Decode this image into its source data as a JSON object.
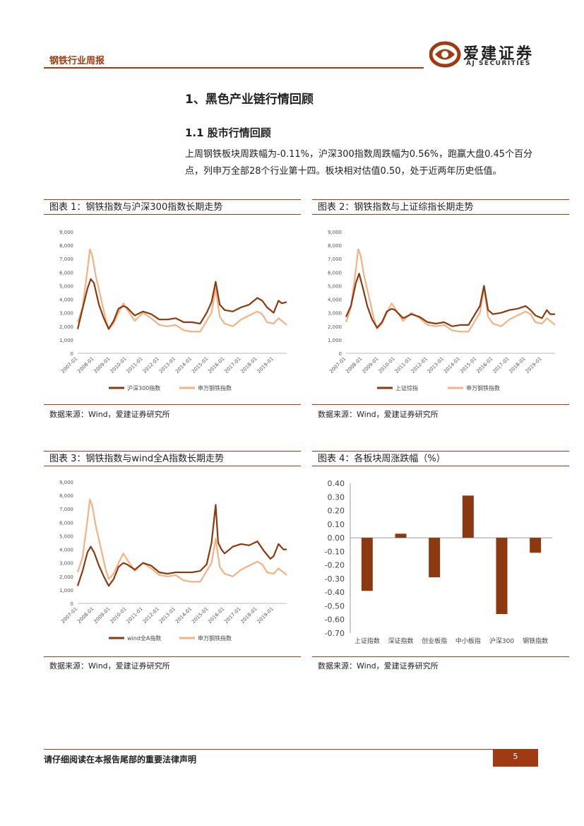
{
  "header": {
    "title": "钢铁行业周报",
    "logo_cn": "爱建证券",
    "logo_en": "AJ SECURITIES",
    "brand_color": "#a03a12"
  },
  "section_title": "1、黑色产业链行情回顾",
  "subsection_title": "1.1 股市行情回顾",
  "paragraph": "上周钢铁板块周跌幅为-0.11%，沪深300指数周跌幅为0.56%，跑赢大盘0.45个百分点，列申万全部28个行业第十四。板块相对估值0.50，处于近两年历史低值。",
  "figures": [
    {
      "title": "图表 1：钢铁指数与沪深300指数长期走势",
      "source": "数据来源：Wind，爱建证券研究所"
    },
    {
      "title": "图表 2：钢铁指数与上证综指长期走势",
      "source": "数据来源：Wind，爱建证券研究所"
    },
    {
      "title": "图表 3：钢铁指数与wind全A指数长期走势",
      "source": "数据来源：Wind，爱建证券研究所"
    },
    {
      "title": "图表 4：各板块周涨跌幅（%）",
      "source": "数据来源：Wind，爱建证券研究所"
    }
  ],
  "chart_data": [
    {
      "type": "line",
      "ylim": [
        0,
        9000
      ],
      "yticks": [
        "9,000",
        "8,000",
        "7,000",
        "6,000",
        "5,000",
        "4,000",
        "3,000",
        "2,000",
        "1,000",
        "0"
      ],
      "xticks": [
        "2007-01",
        "2008-01",
        "2009-01",
        "2010-01",
        "2011-01",
        "2012-01",
        "2013-01",
        "2014-01",
        "2015-01",
        "2016-01",
        "2017-01",
        "2018-01",
        "2019-01"
      ],
      "x_range": [
        2007.0,
        2019.8
      ],
      "series": [
        {
          "name": "沪深300指数",
          "color": "#8b3a10",
          "x": [
            2007.0,
            2007.3,
            2007.6,
            2007.8,
            2008.0,
            2008.3,
            2008.6,
            2008.9,
            2009.2,
            2009.5,
            2009.8,
            2010.0,
            2010.5,
            2011.0,
            2011.5,
            2012.0,
            2012.5,
            2013.0,
            2013.5,
            2014.0,
            2014.5,
            2014.9,
            2015.2,
            2015.45,
            2015.7,
            2016.0,
            2016.5,
            2017.0,
            2017.5,
            2018.0,
            2018.3,
            2018.6,
            2019.0,
            2019.3,
            2019.5,
            2019.8
          ],
          "values": [
            1800,
            3300,
            4800,
            5500,
            5200,
            3600,
            2600,
            1800,
            2400,
            3300,
            3500,
            3400,
            2800,
            3100,
            2900,
            2500,
            2500,
            2600,
            2300,
            2300,
            2200,
            3000,
            3800,
            5300,
            3600,
            3200,
            3100,
            3400,
            3600,
            4100,
            3900,
            3400,
            3000,
            3900,
            3700,
            3800
          ]
        },
        {
          "name": "申万钢铁指数",
          "color": "#f4b183",
          "x": [
            2007.0,
            2007.3,
            2007.6,
            2007.75,
            2007.9,
            2008.1,
            2008.4,
            2008.7,
            2008.9,
            2009.2,
            2009.5,
            2009.8,
            2010.0,
            2010.5,
            2011.0,
            2011.5,
            2012.0,
            2012.5,
            2013.0,
            2013.5,
            2014.0,
            2014.5,
            2014.9,
            2015.2,
            2015.45,
            2015.7,
            2016.0,
            2016.5,
            2017.0,
            2017.5,
            2018.0,
            2018.3,
            2018.6,
            2019.0,
            2019.3,
            2019.6,
            2019.8
          ],
          "values": [
            2300,
            3400,
            6200,
            7700,
            7200,
            5800,
            4200,
            2600,
            1800,
            2200,
            3000,
            3700,
            3300,
            2400,
            3000,
            2600,
            2100,
            2000,
            2100,
            1700,
            1600,
            1600,
            2400,
            3000,
            4800,
            2700,
            2200,
            2000,
            2500,
            2800,
            3100,
            2900,
            2300,
            2200,
            2600,
            2300,
            2100
          ]
        }
      ]
    },
    {
      "type": "line",
      "ylim": [
        0,
        9000
      ],
      "yticks": [
        "9,000",
        "8,000",
        "7,000",
        "6,000",
        "5,000",
        "4,000",
        "3,000",
        "2,000",
        "1,000",
        "0"
      ],
      "xticks": [
        "2007-01",
        "2008-01",
        "2009-01",
        "2010-01",
        "2011-01",
        "2012-01",
        "2013-01",
        "2014-01",
        "2015-01",
        "2016-01",
        "2017-01",
        "2018-01",
        "2019-01"
      ],
      "x_range": [
        2007.0,
        2019.8
      ],
      "series": [
        {
          "name": "上证综指",
          "color": "#8b3a10",
          "x": [
            2007.0,
            2007.3,
            2007.6,
            2007.8,
            2008.0,
            2008.3,
            2008.6,
            2008.9,
            2009.2,
            2009.5,
            2009.8,
            2010.0,
            2010.5,
            2011.0,
            2011.5,
            2012.0,
            2012.5,
            2013.0,
            2013.5,
            2014.0,
            2014.5,
            2014.9,
            2015.2,
            2015.45,
            2015.7,
            2016.0,
            2016.5,
            2017.0,
            2017.5,
            2018.0,
            2018.3,
            2018.6,
            2019.0,
            2019.3,
            2019.5,
            2019.8
          ],
          "values": [
            2700,
            3500,
            5200,
            5900,
            5000,
            3500,
            2500,
            1900,
            2300,
            3100,
            3300,
            3200,
            2600,
            2900,
            2700,
            2300,
            2200,
            2300,
            2000,
            2100,
            2100,
            2900,
            3500,
            5000,
            3200,
            2900,
            3000,
            3200,
            3300,
            3500,
            3200,
            2800,
            2600,
            3200,
            2900,
            2900
          ]
        },
        {
          "name": "申万钢铁指数",
          "color": "#f4b183",
          "x": [
            2007.0,
            2007.3,
            2007.6,
            2007.75,
            2007.9,
            2008.1,
            2008.4,
            2008.7,
            2008.9,
            2009.2,
            2009.5,
            2009.8,
            2010.0,
            2010.5,
            2011.0,
            2011.5,
            2012.0,
            2012.5,
            2013.0,
            2013.5,
            2014.0,
            2014.5,
            2014.9,
            2015.2,
            2015.45,
            2015.7,
            2016.0,
            2016.5,
            2017.0,
            2017.5,
            2018.0,
            2018.3,
            2018.6,
            2019.0,
            2019.3,
            2019.6,
            2019.8
          ],
          "values": [
            2300,
            3400,
            6200,
            7700,
            7200,
            5800,
            4200,
            2600,
            1800,
            2200,
            3000,
            3700,
            3300,
            2400,
            3000,
            2600,
            2100,
            2000,
            2100,
            1700,
            1600,
            1600,
            2400,
            3000,
            4800,
            2700,
            2200,
            2000,
            2500,
            2800,
            3100,
            2900,
            2300,
            2200,
            2600,
            2300,
            2100
          ]
        }
      ]
    },
    {
      "type": "line",
      "ylim": [
        0,
        9000
      ],
      "yticks": [
        "9,000",
        "8,000",
        "7,000",
        "6,000",
        "5,000",
        "4,000",
        "3,000",
        "2,000",
        "1,000",
        "0"
      ],
      "xticks": [
        "2007-01",
        "2008-01",
        "2009-01",
        "2010-01",
        "2011-01",
        "2012-01",
        "2013-01",
        "2014-01",
        "2015-01",
        "2016-01",
        "2017-01",
        "2018-01",
        "2019-01"
      ],
      "x_range": [
        2007.0,
        2019.8
      ],
      "series": [
        {
          "name": "wind全A指数",
          "color": "#8b3a10",
          "x": [
            2007.0,
            2007.3,
            2007.6,
            2007.8,
            2008.0,
            2008.3,
            2008.6,
            2008.9,
            2009.2,
            2009.5,
            2009.8,
            2010.0,
            2010.5,
            2011.0,
            2011.5,
            2012.0,
            2012.5,
            2013.0,
            2013.5,
            2014.0,
            2014.5,
            2014.9,
            2015.2,
            2015.45,
            2015.6,
            2015.8,
            2016.0,
            2016.5,
            2017.0,
            2017.5,
            2018.0,
            2018.4,
            2018.8,
            2019.0,
            2019.3,
            2019.6,
            2019.8
          ],
          "values": [
            1300,
            2400,
            3800,
            4200,
            3800,
            2800,
            2000,
            1300,
            1800,
            2700,
            3000,
            2900,
            2500,
            3000,
            2800,
            2300,
            2200,
            2300,
            2300,
            2300,
            2400,
            2900,
            4500,
            7300,
            4500,
            4000,
            3700,
            4200,
            4400,
            4300,
            4600,
            3900,
            3300,
            3500,
            4400,
            4000,
            4000
          ]
        },
        {
          "name": "申万钢铁指数",
          "color": "#f4b183",
          "x": [
            2007.0,
            2007.3,
            2007.6,
            2007.75,
            2007.9,
            2008.1,
            2008.4,
            2008.7,
            2008.9,
            2009.2,
            2009.5,
            2009.8,
            2010.0,
            2010.5,
            2011.0,
            2011.5,
            2012.0,
            2012.5,
            2013.0,
            2013.5,
            2014.0,
            2014.5,
            2014.9,
            2015.2,
            2015.45,
            2015.7,
            2016.0,
            2016.5,
            2017.0,
            2017.5,
            2018.0,
            2018.3,
            2018.6,
            2019.0,
            2019.3,
            2019.6,
            2019.8
          ],
          "values": [
            2300,
            3400,
            6200,
            7700,
            7200,
            5800,
            4200,
            2600,
            1800,
            2200,
            3000,
            3700,
            3300,
            2400,
            3000,
            2600,
            2100,
            2000,
            2100,
            1700,
            1600,
            1600,
            2400,
            3000,
            4800,
            2700,
            2200,
            2000,
            2500,
            2800,
            3100,
            2900,
            2300,
            2200,
            2600,
            2300,
            2100
          ]
        }
      ]
    },
    {
      "type": "bar",
      "ylim": [
        -0.7,
        0.4
      ],
      "yticks": [
        "0.40",
        "0.30",
        "0.20",
        "0.10",
        "0.00",
        "-0.10",
        "-0.20",
        "-0.30",
        "-0.40",
        "-0.50",
        "-0.60",
        "-0.70"
      ],
      "categories": [
        "上证指数",
        "深证指数",
        "创业板指",
        "中小板指",
        "沪深300",
        "钢铁指数"
      ],
      "values": [
        -0.39,
        0.03,
        -0.29,
        0.31,
        -0.56,
        -0.11
      ],
      "color": "#8b3a10"
    }
  ]
}
